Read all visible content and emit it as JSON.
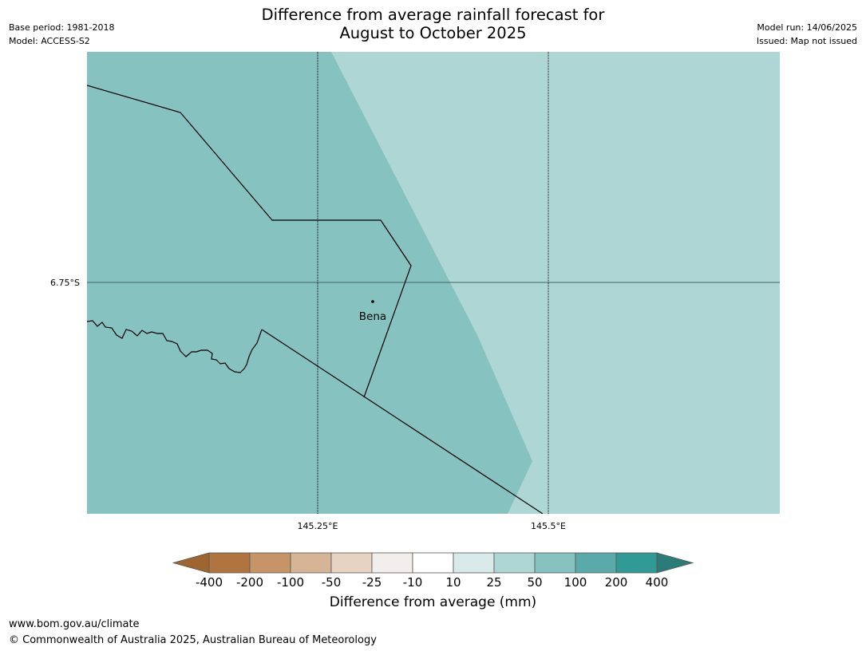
{
  "header": {
    "title_line1": "Difference from average rainfall forecast for",
    "title_line2": "August to October 2025",
    "base_period": "Base period: 1981-2018",
    "model": "Model: ACCESS-S2",
    "model_run": "Model run: 14/06/2025",
    "issued": "Issued: Map not issued"
  },
  "map": {
    "place_label": "Bena",
    "lat_label": "6.75°S",
    "lon_labels": [
      "145.25°E",
      "145.5°E"
    ],
    "region_colors": {
      "west": "#85c2c0",
      "east": "#add6d5"
    }
  },
  "colorbar": {
    "title": "Difference from average (mm)",
    "tick_labels": [
      "-400",
      "-200",
      "-100",
      "-50",
      "-25",
      "-10",
      "10",
      "25",
      "50",
      "100",
      "200",
      "400"
    ],
    "colors": [
      "#9e6530",
      "#b07440",
      "#c59568",
      "#d5b595",
      "#e6d3c2",
      "#f2eeeb",
      "#ffffff",
      "#d8eaea",
      "#add6d5",
      "#85c2c0",
      "#5aaaaa",
      "#329a96",
      "#2b7b79"
    ]
  },
  "footer": {
    "url": "www.bom.gov.au/climate",
    "copyright": "© Commonwealth of Australia 2025, Australian Bureau of Meteorology"
  }
}
